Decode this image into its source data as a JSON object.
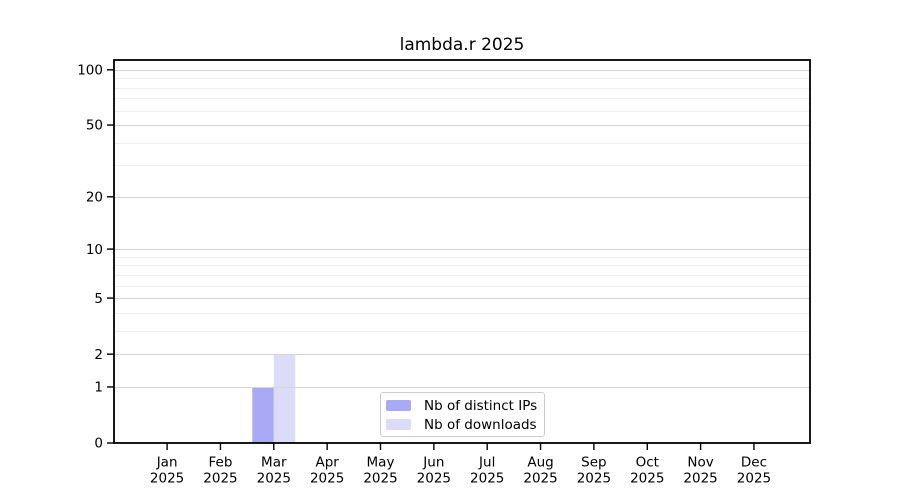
{
  "chart_data": {
    "type": "bar",
    "title": "lambda.r 2025",
    "x_year": "2025",
    "categories": [
      "Jan",
      "Feb",
      "Mar",
      "Apr",
      "May",
      "Jun",
      "Jul",
      "Aug",
      "Sep",
      "Oct",
      "Nov",
      "Dec"
    ],
    "series": [
      {
        "name": "Nb of distinct IPs",
        "color": "#a9a9f6",
        "values": [
          0,
          0,
          1,
          0,
          0,
          0,
          0,
          0,
          0,
          0,
          0,
          0
        ]
      },
      {
        "name": "Nb of downloads",
        "color": "#dcdcf9",
        "values": [
          0,
          0,
          2,
          0,
          0,
          0,
          0,
          0,
          0,
          0,
          0,
          0
        ]
      }
    ],
    "yscale": "log1p",
    "ylim": [
      0,
      113
    ],
    "yticks": [
      0,
      1,
      2,
      5,
      10,
      20,
      50,
      100
    ],
    "ytick_labels": [
      "0",
      "1",
      "2",
      "5",
      "10",
      "20",
      "50",
      "100"
    ],
    "minor_gridlines": [
      3,
      4,
      6,
      7,
      8,
      9,
      30,
      40,
      60,
      70,
      80,
      90
    ],
    "grid": "horizontal",
    "legend_position": "lower center inside",
    "colors": {
      "axis": "#000000",
      "tick_text": "#000000",
      "major_grid": "#d6d6d6",
      "minor_grid": "#f0f0f0",
      "legend_border": "#cccccc",
      "background": "#ffffff"
    }
  }
}
